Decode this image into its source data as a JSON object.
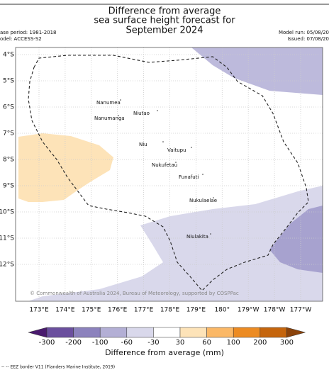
{
  "header": {
    "title": [
      "Difference from average",
      "sea surface height forecast for",
      "September 2024"
    ],
    "left": [
      "ase period: 1981-2018",
      "odel: ACCESS-S2"
    ],
    "right": [
      "Model run: 05/08/20",
      "Issued: 07/08/20"
    ]
  },
  "map": {
    "latitudes": [
      "4°S",
      "5°S",
      "6°S",
      "7°S",
      "8°S",
      "9°S",
      "10°S",
      "11°S",
      "12°S"
    ],
    "longitudes": [
      "173°E",
      "174°E",
      "175°E",
      "176°E",
      "177°E",
      "178°E",
      "179°E",
      "180°",
      "179°W",
      "178°W",
      "177°W"
    ],
    "places": [
      {
        "label": "Nanumea"
      },
      {
        "label": "Nanumanga"
      },
      {
        "label": "Niutao"
      },
      {
        "label": "Niu"
      },
      {
        "label": "Vaitupu"
      },
      {
        "label": "Nukufetau"
      },
      {
        "label": "Funafuti"
      },
      {
        "label": "Nukulaelae"
      },
      {
        "label": "Niulakita"
      }
    ],
    "credit": "© Commonwealth of Australia 2024, Bureau of Meteorology, supported by COSPPac"
  },
  "colorbar": {
    "labels": [
      "-300",
      "-200",
      "-100",
      "-60",
      "-30",
      "30",
      "60",
      "100",
      "200",
      "300"
    ],
    "colors": [
      "#4a1a6e",
      "#6b4f9e",
      "#8c82bd",
      "#b3afd5",
      "#d9d8eb",
      "#ffffff",
      "#fde3b8",
      "#fbb866",
      "#ec8b22",
      "#c5650d",
      "#8b430b"
    ],
    "label": "Difference from average (mm)"
  },
  "legend": "-- -- EEZ border V11 (Flanders Marine Institute, 2019)"
}
